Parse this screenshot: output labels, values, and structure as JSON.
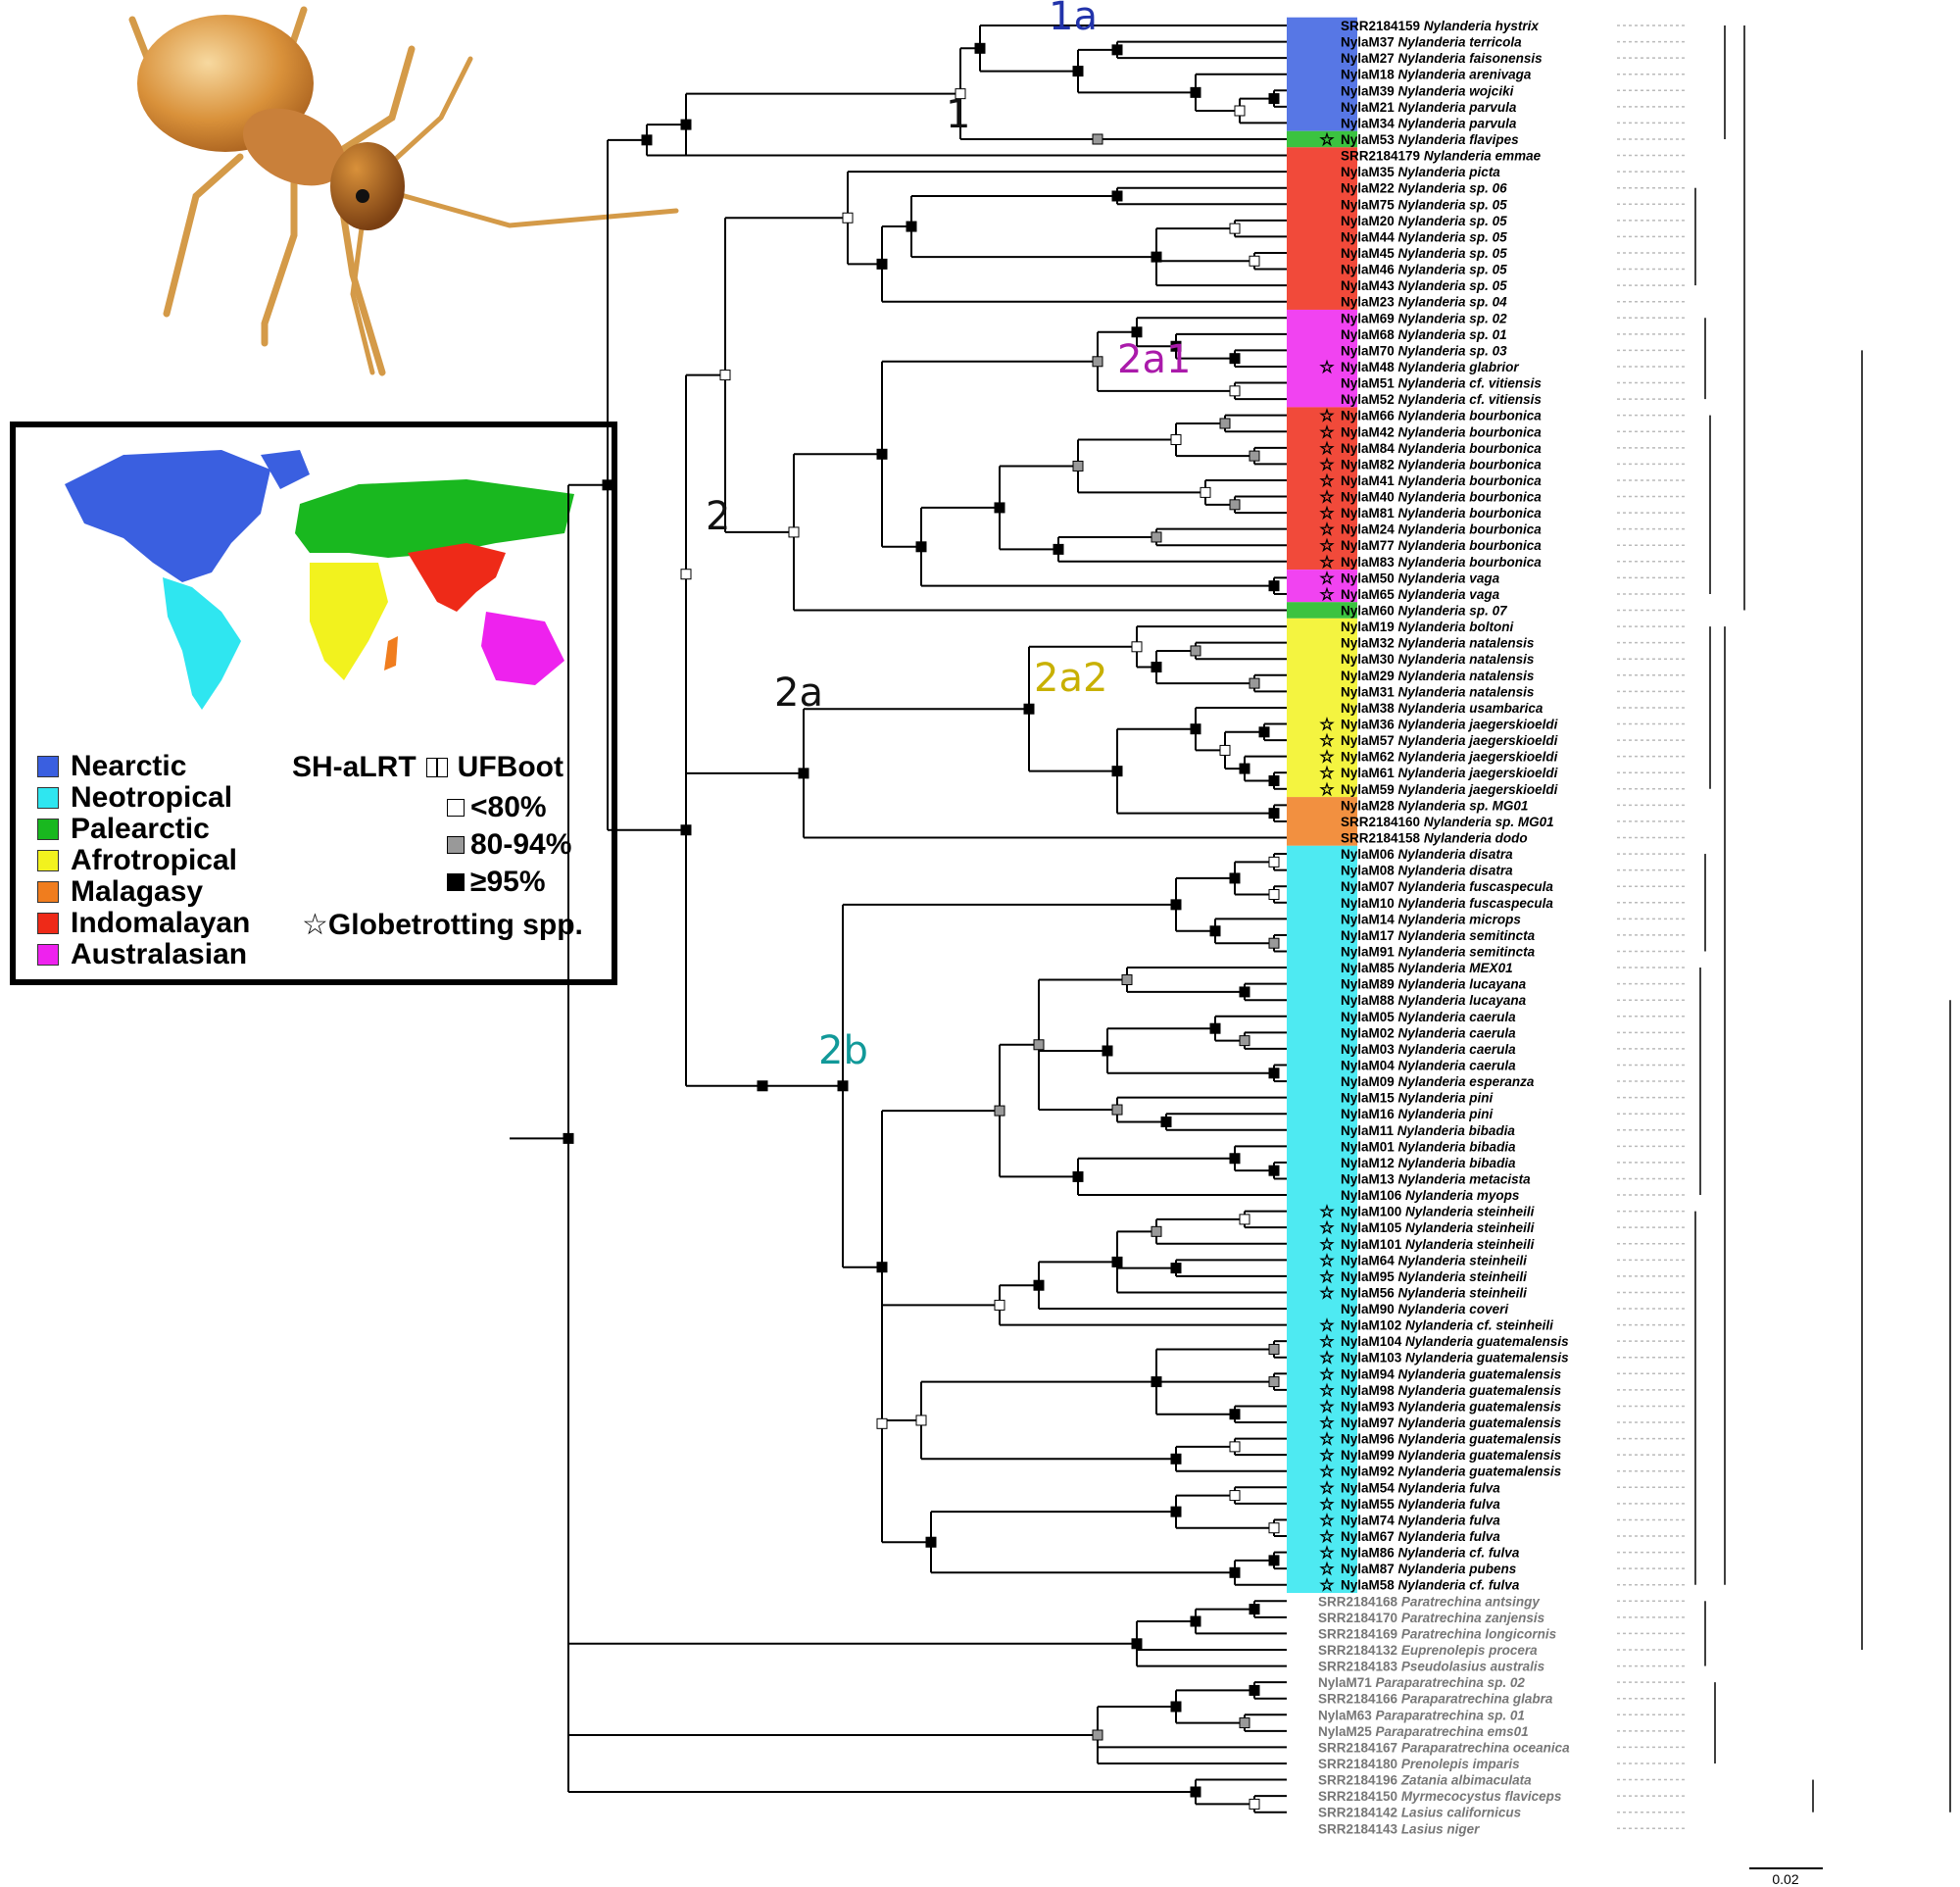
{
  "legend": {
    "regions": [
      {
        "name": "Nearctic",
        "color": "#3a5fe0"
      },
      {
        "name": "Neotropical",
        "color": "#2fe6f0"
      },
      {
        "name": "Palearctic",
        "color": "#19b81f"
      },
      {
        "name": "Afrotropical",
        "color": "#f2f21e"
      },
      {
        "name": "Malagasy",
        "color": "#f07d1e"
      },
      {
        "name": "Indomalayan",
        "color": "#ee2a18"
      },
      {
        "name": "Australasian",
        "color": "#ee22ee"
      }
    ],
    "support_title_left": "SH-aLRT",
    "support_title_right": "UFBoot",
    "support_levels": [
      {
        "label": "<80%",
        "fill": "#ffffff"
      },
      {
        "label": "80-94%",
        "fill": "#999999"
      },
      {
        "label": "≥95%",
        "fill": "#000000"
      }
    ],
    "globetrotting_label": "☆Globetrotting spp."
  },
  "clade_labels": [
    {
      "text": "1a",
      "color": "#2233aa"
    },
    {
      "text": "1",
      "color": "#111111"
    },
    {
      "text": "2",
      "color": "#111111"
    },
    {
      "text": "2a1",
      "color": "#aa1aaa"
    },
    {
      "text": "2a",
      "color": "#111111"
    },
    {
      "text": "2a2",
      "color": "#c8b000"
    },
    {
      "text": "2b",
      "color": "#119999"
    }
  ],
  "scale_bar": "0.02",
  "taxa": [
    {
      "id": "SRR2184159",
      "sp": "Nylanderia hystrix",
      "r": "Nearctic",
      "s": false
    },
    {
      "id": "NylaM37",
      "sp": "Nylanderia terricola",
      "r": "Nearctic",
      "s": false
    },
    {
      "id": "NylaM27",
      "sp": "Nylanderia faisonensis",
      "r": "Nearctic",
      "s": false
    },
    {
      "id": "NylaM18",
      "sp": "Nylanderia arenivaga",
      "r": "Nearctic",
      "s": false
    },
    {
      "id": "NylaM39",
      "sp": "Nylanderia wojciki",
      "r": "Nearctic",
      "s": false
    },
    {
      "id": "NylaM21",
      "sp": "Nylanderia parvula",
      "r": "Nearctic",
      "s": false
    },
    {
      "id": "NylaM34",
      "sp": "Nylanderia parvula",
      "r": "Nearctic",
      "s": false
    },
    {
      "id": "NylaM53",
      "sp": "Nylanderia flavipes",
      "r": "Palearctic",
      "s": true
    },
    {
      "id": "SRR2184179",
      "sp": "Nylanderia emmae",
      "r": "Indomalayan",
      "s": false
    },
    {
      "id": "NylaM35",
      "sp": "Nylanderia picta",
      "r": "Indomalayan",
      "s": false
    },
    {
      "id": "NylaM22",
      "sp": "Nylanderia sp. 06",
      "r": "Indomalayan",
      "s": false
    },
    {
      "id": "NylaM75",
      "sp": "Nylanderia sp. 05",
      "r": "Indomalayan",
      "s": false
    },
    {
      "id": "NylaM20",
      "sp": "Nylanderia sp. 05",
      "r": "Indomalayan",
      "s": false
    },
    {
      "id": "NylaM44",
      "sp": "Nylanderia sp. 05",
      "r": "Indomalayan",
      "s": false
    },
    {
      "id": "NylaM45",
      "sp": "Nylanderia sp. 05",
      "r": "Indomalayan",
      "s": false
    },
    {
      "id": "NylaM46",
      "sp": "Nylanderia sp. 05",
      "r": "Indomalayan",
      "s": false
    },
    {
      "id": "NylaM43",
      "sp": "Nylanderia sp. 05",
      "r": "Indomalayan",
      "s": false
    },
    {
      "id": "NylaM23",
      "sp": "Nylanderia sp. 04",
      "r": "Indomalayan",
      "s": false
    },
    {
      "id": "NylaM69",
      "sp": "Nylanderia sp. 02",
      "r": "Australasian",
      "s": false
    },
    {
      "id": "NylaM68",
      "sp": "Nylanderia sp. 01",
      "r": "Australasian",
      "s": false
    },
    {
      "id": "NylaM70",
      "sp": "Nylanderia sp. 03",
      "r": "Australasian",
      "s": false
    },
    {
      "id": "NylaM48",
      "sp": "Nylanderia glabrior",
      "r": "Australasian",
      "s": true
    },
    {
      "id": "NylaM51",
      "sp": "Nylanderia cf. vitiensis",
      "r": "Australasian",
      "s": false
    },
    {
      "id": "NylaM52",
      "sp": "Nylanderia cf. vitiensis",
      "r": "Australasian",
      "s": false
    },
    {
      "id": "NylaM66",
      "sp": "Nylanderia bourbonica",
      "r": "Indomalayan",
      "s": true
    },
    {
      "id": "NylaM42",
      "sp": "Nylanderia bourbonica",
      "r": "Indomalayan",
      "s": true
    },
    {
      "id": "NylaM84",
      "sp": "Nylanderia bourbonica",
      "r": "Indomalayan",
      "s": true
    },
    {
      "id": "NylaM82",
      "sp": "Nylanderia bourbonica",
      "r": "Indomalayan",
      "s": true
    },
    {
      "id": "NylaM41",
      "sp": "Nylanderia bourbonica",
      "r": "Indomalayan",
      "s": true
    },
    {
      "id": "NylaM40",
      "sp": "Nylanderia bourbonica",
      "r": "Indomalayan",
      "s": true
    },
    {
      "id": "NylaM81",
      "sp": "Nylanderia bourbonica",
      "r": "Indomalayan",
      "s": true
    },
    {
      "id": "NylaM24",
      "sp": "Nylanderia bourbonica",
      "r": "Indomalayan",
      "s": true
    },
    {
      "id": "NylaM77",
      "sp": "Nylanderia bourbonica",
      "r": "Indomalayan",
      "s": true
    },
    {
      "id": "NylaM83",
      "sp": "Nylanderia bourbonica",
      "r": "Indomalayan",
      "s": true
    },
    {
      "id": "NylaM50",
      "sp": "Nylanderia vaga",
      "r": "Australasian",
      "s": true
    },
    {
      "id": "NylaM65",
      "sp": "Nylanderia vaga",
      "r": "Australasian",
      "s": true
    },
    {
      "id": "NylaM60",
      "sp": "Nylanderia sp. 07",
      "r": "Palearctic",
      "s": false
    },
    {
      "id": "NylaM19",
      "sp": "Nylanderia boltoni",
      "r": "Afrotropical",
      "s": false
    },
    {
      "id": "NylaM32",
      "sp": "Nylanderia natalensis",
      "r": "Afrotropical",
      "s": false
    },
    {
      "id": "NylaM30",
      "sp": "Nylanderia natalensis",
      "r": "Afrotropical",
      "s": false
    },
    {
      "id": "NylaM29",
      "sp": "Nylanderia natalensis",
      "r": "Afrotropical",
      "s": false
    },
    {
      "id": "NylaM31",
      "sp": "Nylanderia natalensis",
      "r": "Afrotropical",
      "s": false
    },
    {
      "id": "NylaM38",
      "sp": "Nylanderia usambarica",
      "r": "Afrotropical",
      "s": false
    },
    {
      "id": "NylaM36",
      "sp": "Nylanderia jaegerskioeldi",
      "r": "Afrotropical",
      "s": true
    },
    {
      "id": "NylaM57",
      "sp": "Nylanderia jaegerskioeldi",
      "r": "Afrotropical",
      "s": true
    },
    {
      "id": "NylaM62",
      "sp": "Nylanderia jaegerskioeldi",
      "r": "Afrotropical",
      "s": true
    },
    {
      "id": "NylaM61",
      "sp": "Nylanderia jaegerskioeldi",
      "r": "Afrotropical",
      "s": true
    },
    {
      "id": "NylaM59",
      "sp": "Nylanderia jaegerskioeldi",
      "r": "Afrotropical",
      "s": true
    },
    {
      "id": "NylaM28",
      "sp": "Nylanderia sp. MG01",
      "r": "Malagasy",
      "s": false
    },
    {
      "id": "SRR2184160",
      "sp": "Nylanderia sp. MG01",
      "r": "Malagasy",
      "s": false
    },
    {
      "id": "SRR2184158",
      "sp": "Nylanderia dodo",
      "r": "Malagasy",
      "s": false
    },
    {
      "id": "NylaM06",
      "sp": "Nylanderia disatra",
      "r": "Neotropical",
      "s": false
    },
    {
      "id": "NylaM08",
      "sp": "Nylanderia disatra",
      "r": "Neotropical",
      "s": false
    },
    {
      "id": "NylaM07",
      "sp": "Nylanderia fuscaspecula",
      "r": "Neotropical",
      "s": false
    },
    {
      "id": "NylaM10",
      "sp": "Nylanderia fuscaspecula",
      "r": "Neotropical",
      "s": false
    },
    {
      "id": "NylaM14",
      "sp": "Nylanderia microps",
      "r": "Neotropical",
      "s": false
    },
    {
      "id": "NylaM17",
      "sp": "Nylanderia semitincta",
      "r": "Neotropical",
      "s": false
    },
    {
      "id": "NylaM91",
      "sp": "Nylanderia semitincta",
      "r": "Neotropical",
      "s": false
    },
    {
      "id": "NylaM85",
      "sp": "Nylanderia MEX01",
      "r": "Neotropical",
      "s": false
    },
    {
      "id": "NylaM89",
      "sp": "Nylanderia lucayana",
      "r": "Neotropical",
      "s": false
    },
    {
      "id": "NylaM88",
      "sp": "Nylanderia lucayana",
      "r": "Neotropical",
      "s": false
    },
    {
      "id": "NylaM05",
      "sp": "Nylanderia caerula",
      "r": "Neotropical",
      "s": false
    },
    {
      "id": "NylaM02",
      "sp": "Nylanderia caerula",
      "r": "Neotropical",
      "s": false
    },
    {
      "id": "NylaM03",
      "sp": "Nylanderia caerula",
      "r": "Neotropical",
      "s": false
    },
    {
      "id": "NylaM04",
      "sp": "Nylanderia caerula",
      "r": "Neotropical",
      "s": false
    },
    {
      "id": "NylaM09",
      "sp": "Nylanderia esperanza",
      "r": "Neotropical",
      "s": false
    },
    {
      "id": "NylaM15",
      "sp": "Nylanderia pini",
      "r": "Neotropical",
      "s": false
    },
    {
      "id": "NylaM16",
      "sp": "Nylanderia pini",
      "r": "Neotropical",
      "s": false
    },
    {
      "id": "NylaM11",
      "sp": "Nylanderia bibadia",
      "r": "Neotropical",
      "s": false
    },
    {
      "id": "NylaM01",
      "sp": "Nylanderia bibadia",
      "r": "Neotropical",
      "s": false
    },
    {
      "id": "NylaM12",
      "sp": "Nylanderia bibadia",
      "r": "Neotropical",
      "s": false
    },
    {
      "id": "NylaM13",
      "sp": "Nylanderia metacista",
      "r": "Neotropical",
      "s": false
    },
    {
      "id": "NylaM106",
      "sp": "Nylanderia myops",
      "r": "Neotropical",
      "s": false
    },
    {
      "id": "NylaM100",
      "sp": "Nylanderia steinheili",
      "r": "Neotropical",
      "s": true
    },
    {
      "id": "NylaM105",
      "sp": "Nylanderia steinheili",
      "r": "Neotropical",
      "s": true
    },
    {
      "id": "NylaM101",
      "sp": "Nylanderia steinheili",
      "r": "Neotropical",
      "s": true
    },
    {
      "id": "NylaM64",
      "sp": "Nylanderia steinheili",
      "r": "Neotropical",
      "s": true
    },
    {
      "id": "NylaM95",
      "sp": "Nylanderia steinheili",
      "r": "Neotropical",
      "s": true
    },
    {
      "id": "NylaM56",
      "sp": "Nylanderia steinheili",
      "r": "Neotropical",
      "s": true
    },
    {
      "id": "NylaM90",
      "sp": "Nylanderia coveri",
      "r": "Neotropical",
      "s": false
    },
    {
      "id": "NylaM102",
      "sp": "Nylanderia cf. steinheili",
      "r": "Neotropical",
      "s": true
    },
    {
      "id": "NylaM104",
      "sp": "Nylanderia guatemalensis",
      "r": "Neotropical",
      "s": true
    },
    {
      "id": "NylaM103",
      "sp": "Nylanderia guatemalensis",
      "r": "Neotropical",
      "s": true
    },
    {
      "id": "NylaM94",
      "sp": "Nylanderia guatemalensis",
      "r": "Neotropical",
      "s": true
    },
    {
      "id": "NylaM98",
      "sp": "Nylanderia guatemalensis",
      "r": "Neotropical",
      "s": true
    },
    {
      "id": "NylaM93",
      "sp": "Nylanderia guatemalensis",
      "r": "Neotropical",
      "s": true
    },
    {
      "id": "NylaM97",
      "sp": "Nylanderia guatemalensis",
      "r": "Neotropical",
      "s": true
    },
    {
      "id": "NylaM96",
      "sp": "Nylanderia guatemalensis",
      "r": "Neotropical",
      "s": true
    },
    {
      "id": "NylaM99",
      "sp": "Nylanderia guatemalensis",
      "r": "Neotropical",
      "s": true
    },
    {
      "id": "NylaM92",
      "sp": "Nylanderia guatemalensis",
      "r": "Neotropical",
      "s": true
    },
    {
      "id": "NylaM54",
      "sp": "Nylanderia fulva",
      "r": "Neotropical",
      "s": true
    },
    {
      "id": "NylaM55",
      "sp": "Nylanderia fulva",
      "r": "Neotropical",
      "s": true
    },
    {
      "id": "NylaM74",
      "sp": "Nylanderia fulva",
      "r": "Neotropical",
      "s": true
    },
    {
      "id": "NylaM67",
      "sp": "Nylanderia fulva",
      "r": "Neotropical",
      "s": true
    },
    {
      "id": "NylaM86",
      "sp": "Nylanderia cf. fulva",
      "r": "Neotropical",
      "s": true
    },
    {
      "id": "NylaM87",
      "sp": "Nylanderia pubens",
      "r": "Neotropical",
      "s": true
    },
    {
      "id": "NylaM58",
      "sp": "Nylanderia cf. fulva",
      "r": "Neotropical",
      "s": true
    },
    {
      "id": "SRR2184168",
      "sp": "Paratrechina antsingy",
      "r": "",
      "s": false
    },
    {
      "id": "SRR2184170",
      "sp": "Paratrechina zanjensis",
      "r": "",
      "s": false
    },
    {
      "id": "SRR2184169",
      "sp": "Paratrechina longicornis",
      "r": "",
      "s": false
    },
    {
      "id": "SRR2184132",
      "sp": "Euprenolepis procera",
      "r": "",
      "s": false
    },
    {
      "id": "SRR2184183",
      "sp": "Pseudolasius australis",
      "r": "",
      "s": false
    },
    {
      "id": "NylaM71",
      "sp": "Paraparatrechina sp. 02",
      "r": "",
      "s": false
    },
    {
      "id": "SRR2184166",
      "sp": "Paraparatrechina glabra",
      "r": "",
      "s": false
    },
    {
      "id": "NylaM63",
      "sp": "Paraparatrechina sp. 01",
      "r": "",
      "s": false
    },
    {
      "id": "NylaM25",
      "sp": "Paraparatrechina ems01",
      "r": "",
      "s": false
    },
    {
      "id": "SRR2184167",
      "sp": "Paraparatrechina oceanica",
      "r": "",
      "s": false
    },
    {
      "id": "SRR2184180",
      "sp": "Prenolepis imparis",
      "r": "",
      "s": false
    },
    {
      "id": "SRR2184196",
      "sp": "Zatania albimaculata",
      "r": "",
      "s": false
    },
    {
      "id": "SRR2184150",
      "sp": "Myrmecocystus flaviceps",
      "r": "",
      "s": false
    },
    {
      "id": "SRR2184142",
      "sp": "Lasius californicus",
      "r": "",
      "s": false
    },
    {
      "id": "SRR2184143",
      "sp": "Lasius niger",
      "r": "",
      "s": false
    }
  ]
}
